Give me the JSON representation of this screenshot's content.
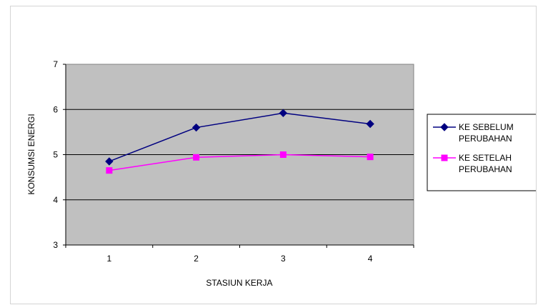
{
  "chart_data": {
    "type": "line",
    "title": "",
    "xlabel": "STASIUN KERJA",
    "ylabel": "KONSUMSI ENERGI",
    "categories": [
      "1",
      "2",
      "3",
      "4"
    ],
    "yticks": [
      "3",
      "4",
      "5",
      "6",
      "7"
    ],
    "ylim": [
      3,
      7
    ],
    "grid": true,
    "plot_background": "#c0c0c0",
    "legend_position": "right",
    "series": [
      {
        "name": "KE SEBELUM PERUBAHAN",
        "legend_lines": [
          "KE SEBELUM",
          "PERUBAHAN"
        ],
        "values": [
          4.85,
          5.6,
          5.92,
          5.68
        ],
        "color": "#000080",
        "marker": "diamond"
      },
      {
        "name": "KE SETELAH PERUBAHAN",
        "legend_lines": [
          "KE SETELAH",
          "PERUBAHAN"
        ],
        "values": [
          4.65,
          4.94,
          5.0,
          4.95
        ],
        "color": "#ff00ff",
        "marker": "square"
      }
    ]
  }
}
